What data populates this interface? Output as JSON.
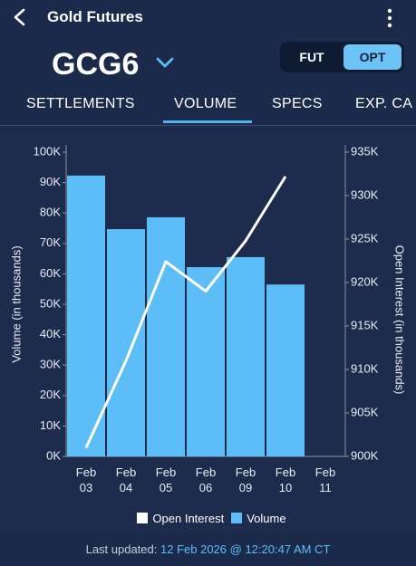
{
  "header": {
    "title": "Gold Futures"
  },
  "symbol": "GCG6",
  "toggle": [
    "FUT",
    "OPT"
  ],
  "tabs": [
    "SETTLEMENTS",
    "VOLUME",
    "SPECS",
    "EXP. CA"
  ],
  "chart_data": {
    "type": "bar_line",
    "ylabel": "Volume (in thousands)",
    "y2label": "Open Interest (in thousands)",
    "categories": [
      "Feb 03",
      "Feb 04",
      "Feb 05",
      "Feb 06",
      "Feb 09",
      "Feb 10",
      "Feb 11"
    ],
    "series": [
      {
        "name": "Open Interest",
        "type": "line",
        "axis": "y2",
        "color": "#ffffff",
        "values": [
          901000,
          911000,
          922400,
          919000,
          924800,
          932200,
          null
        ]
      },
      {
        "name": "Volume",
        "type": "bar",
        "color": "#5dbdf7",
        "values": [
          92300,
          74700,
          78600,
          62200,
          65500,
          56500,
          null
        ]
      }
    ],
    "ylim": [
      0,
      100000
    ],
    "yticks": [
      {
        "value": 0,
        "label": "0K"
      },
      {
        "value": 10000,
        "label": "10K"
      },
      {
        "value": 20000,
        "label": "20K"
      },
      {
        "value": 30000,
        "label": "30K"
      },
      {
        "value": 40000,
        "label": "40K"
      },
      {
        "value": 50000,
        "label": "50K"
      },
      {
        "value": 60000,
        "label": "60K"
      },
      {
        "value": 70000,
        "label": "70K"
      },
      {
        "value": 80000,
        "label": "80K"
      },
      {
        "value": 90000,
        "label": "90K"
      },
      {
        "value": 100000,
        "label": "100K"
      }
    ],
    "y2lim": [
      900000,
      935000
    ],
    "y2ticks": [
      {
        "value": 900000,
        "label": "900K"
      },
      {
        "value": 905000,
        "label": "905K"
      },
      {
        "value": 910000,
        "label": "910K"
      },
      {
        "value": 915000,
        "label": "915K"
      },
      {
        "value": 920000,
        "label": "920K"
      },
      {
        "value": 925000,
        "label": "925K"
      },
      {
        "value": 930000,
        "label": "930K"
      },
      {
        "value": 935000,
        "label": "935K"
      }
    ],
    "grid": false
  },
  "footer": {
    "label": "Last updated:",
    "value": "12 Feb 2026 @ 12:20:47 AM CT"
  }
}
